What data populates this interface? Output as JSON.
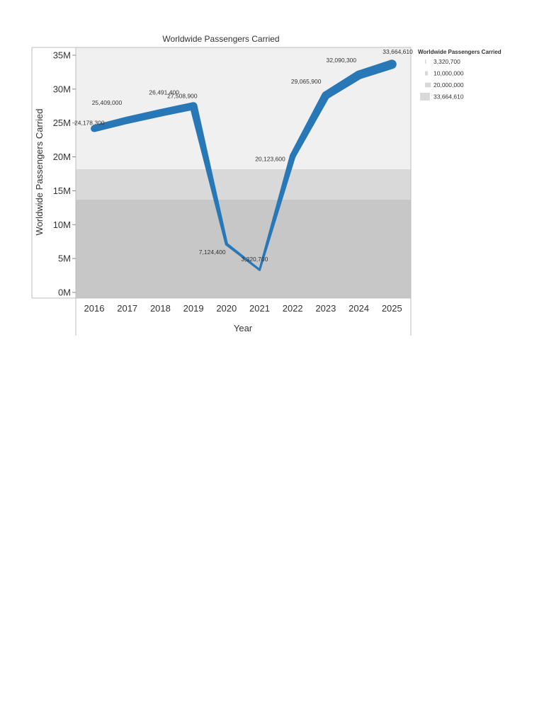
{
  "chart_data": {
    "type": "line",
    "title": "Worldwide Passengers Carried",
    "xlabel": "Year",
    "ylabel": "Worldwide Passengers Carried",
    "ylim": [
      0,
      35000000
    ],
    "yticks": [
      {
        "value": 0,
        "label": "0M"
      },
      {
        "value": 5000000,
        "label": "5M"
      },
      {
        "value": 10000000,
        "label": "10M"
      },
      {
        "value": 15000000,
        "label": "15M"
      },
      {
        "value": 20000000,
        "label": "20M"
      },
      {
        "value": 25000000,
        "label": "25M"
      },
      {
        "value": 30000000,
        "label": "30M"
      },
      {
        "value": 35000000,
        "label": "35M"
      }
    ],
    "categories": [
      "2016",
      "2017",
      "2018",
      "2019",
      "2020",
      "2021",
      "2022",
      "2023",
      "2024",
      "2025"
    ],
    "values": [
      24178300,
      25409000,
      26491400,
      27508900,
      7124400,
      3320700,
      20123600,
      29065900,
      32090300,
      33664610
    ],
    "data_labels": [
      "24,178,300",
      "25,409,000",
      "26,491,400",
      "27,508,900",
      "7,124,400",
      "3,320,700",
      "20,123,600",
      "29,065,900",
      "32,090,300",
      "33,664,610"
    ],
    "line_color": "#2878b8",
    "line_width_encodes": "Worldwide Passengers Carried",
    "background_bands": [
      {
        "from": 0,
        "to": 13700000,
        "color": "#c7c7c7"
      },
      {
        "from": 13700000,
        "to": 18200000,
        "color": "#d9d9d9"
      },
      {
        "from": 18200000,
        "to": 35000000,
        "color": "#f0f0f0"
      }
    ],
    "legend": {
      "title": "Worldwide Passengers Carried",
      "placement": "top-right",
      "entries": [
        {
          "label": "3,320,700",
          "value": 3320700
        },
        {
          "label": "10,000,000",
          "value": 10000000
        },
        {
          "label": "20,000,000",
          "value": 20000000
        },
        {
          "label": "33,664,610",
          "value": 33664610
        }
      ],
      "swatch_color": "#d9d9d9"
    },
    "grid": false
  }
}
